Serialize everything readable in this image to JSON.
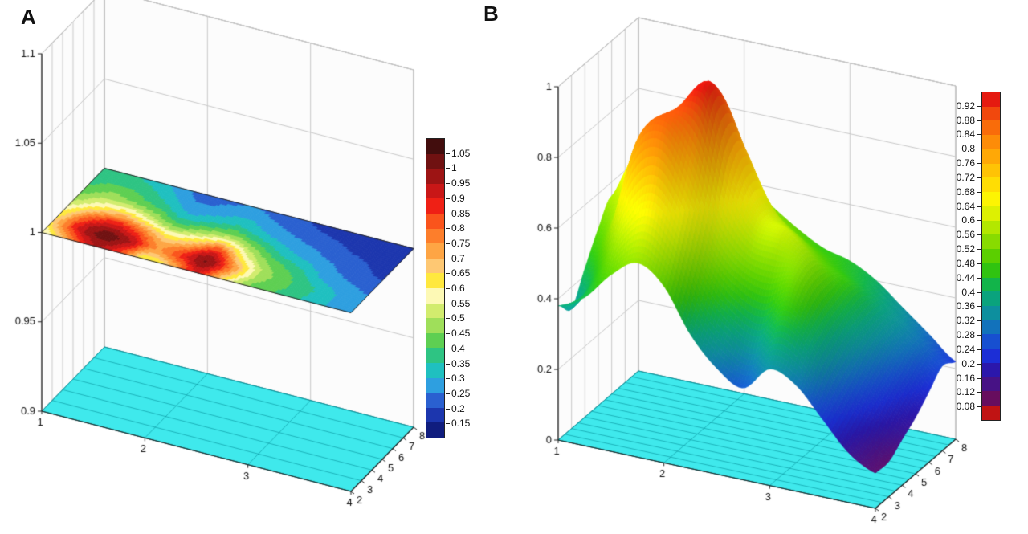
{
  "figure": {
    "background": "#ffffff"
  },
  "chart_data": [
    {
      "id": "A",
      "label": "A",
      "type": "heatmap",
      "render": "contour-slice-3d",
      "plane_z": 1.0,
      "floor_color": "#3fe9ec",
      "x": [
        1,
        1.25,
        1.5,
        1.75,
        2,
        2.25,
        2.5,
        2.75,
        3,
        3.25,
        3.5,
        3.75,
        4
      ],
      "y": [
        2,
        3,
        4,
        5,
        6,
        7,
        8
      ],
      "values": [
        [
          0.55,
          0.75,
          0.95,
          0.85,
          0.6,
          0.7,
          0.9,
          0.65,
          0.45,
          0.4,
          0.35,
          0.3,
          0.28
        ],
        [
          0.65,
          0.9,
          1.02,
          0.95,
          0.75,
          0.85,
          1.0,
          0.75,
          0.5,
          0.42,
          0.36,
          0.3,
          0.26
        ],
        [
          0.6,
          0.8,
          0.9,
          0.8,
          0.65,
          0.7,
          0.85,
          0.6,
          0.45,
          0.38,
          0.3,
          0.26,
          0.24
        ],
        [
          0.5,
          0.6,
          0.65,
          0.55,
          0.45,
          0.5,
          0.55,
          0.45,
          0.35,
          0.3,
          0.26,
          0.22,
          0.2
        ],
        [
          0.42,
          0.48,
          0.45,
          0.4,
          0.32,
          0.35,
          0.38,
          0.32,
          0.28,
          0.25,
          0.22,
          0.2,
          0.18
        ],
        [
          0.38,
          0.4,
          0.38,
          0.32,
          0.26,
          0.28,
          0.3,
          0.26,
          0.23,
          0.21,
          0.19,
          0.17,
          0.16
        ],
        [
          0.35,
          0.36,
          0.33,
          0.28,
          0.22,
          0.24,
          0.25,
          0.22,
          0.2,
          0.18,
          0.17,
          0.16,
          0.15
        ]
      ],
      "axes": {
        "x": {
          "range": [
            1,
            4
          ],
          "ticks": [
            "1",
            "2",
            "3",
            "4"
          ]
        },
        "y": {
          "range": [
            2,
            8
          ],
          "ticks": [
            "2",
            "3",
            "4",
            "5",
            "6",
            "7",
            "8"
          ]
        },
        "z": {
          "range": [
            0.9,
            1.1
          ],
          "ticks": [
            "0.9",
            "0.95",
            "1",
            "1.05",
            "1.1"
          ]
        }
      },
      "colorbar": {
        "tick_labels_top_to_bottom": [
          "1.05",
          "1",
          "0.95",
          "0.9",
          "0.85",
          "0.8",
          "0.75",
          "0.7",
          "0.65",
          "0.6",
          "0.55",
          "0.5",
          "0.45",
          "0.4",
          "0.35",
          "0.3",
          "0.25",
          "0.2",
          "0.15"
        ],
        "levels_ascending": [
          0.15,
          0.2,
          0.25,
          0.3,
          0.35,
          0.4,
          0.45,
          0.5,
          0.55,
          0.6,
          0.65,
          0.7,
          0.75,
          0.8,
          0.85,
          0.9,
          0.95,
          1.0,
          1.05
        ],
        "segment_colors_top_to_bottom": [
          "#420d0d",
          "#701111",
          "#9d1414",
          "#c91717",
          "#ef2015",
          "#fa541c",
          "#fd7e2b",
          "#fea544",
          "#fec873",
          "#ffe83e",
          "#fdf9b5",
          "#d2ec6e",
          "#9fdf5a",
          "#5ecf52",
          "#2ec483",
          "#1fc0c0",
          "#2e9fe0",
          "#2a60d0",
          "#1c36ae",
          "#101d7e"
        ]
      }
    },
    {
      "id": "B",
      "label": "B",
      "type": "heatmap",
      "render": "surface-3d",
      "floor_color": "#3fe9ec",
      "x": [
        1,
        1.25,
        1.5,
        1.75,
        2,
        2.25,
        2.5,
        2.75,
        3,
        3.25,
        3.5,
        3.75,
        4
      ],
      "y": [
        2,
        3,
        4,
        5,
        6,
        7,
        8
      ],
      "values": [
        [
          0.38,
          0.42,
          0.5,
          0.55,
          0.5,
          0.38,
          0.3,
          0.26,
          0.33,
          0.3,
          0.22,
          0.14,
          0.1
        ],
        [
          0.34,
          0.46,
          0.62,
          0.7,
          0.62,
          0.48,
          0.4,
          0.36,
          0.44,
          0.38,
          0.26,
          0.16,
          0.1
        ],
        [
          0.42,
          0.56,
          0.82,
          0.88,
          0.78,
          0.6,
          0.52,
          0.5,
          0.52,
          0.42,
          0.3,
          0.2,
          0.13
        ],
        [
          0.5,
          0.62,
          0.74,
          0.88,
          0.96,
          0.76,
          0.62,
          0.6,
          0.54,
          0.44,
          0.34,
          0.24,
          0.16
        ],
        [
          0.56,
          0.7,
          0.66,
          0.78,
          0.92,
          0.78,
          0.62,
          0.56,
          0.5,
          0.45,
          0.36,
          0.28,
          0.2
        ],
        [
          0.48,
          0.62,
          0.58,
          0.62,
          0.72,
          0.62,
          0.55,
          0.5,
          0.46,
          0.42,
          0.36,
          0.3,
          0.24
        ],
        [
          0.42,
          0.52,
          0.52,
          0.56,
          0.6,
          0.55,
          0.5,
          0.46,
          0.44,
          0.4,
          0.34,
          0.28,
          0.22
        ]
      ],
      "axes": {
        "x": {
          "range": [
            1,
            4
          ],
          "ticks": [
            "1",
            "2",
            "3",
            "4"
          ]
        },
        "y": {
          "range": [
            2,
            8
          ],
          "ticks": [
            "2",
            "3",
            "4",
            "5",
            "6",
            "7",
            "8"
          ]
        },
        "z": {
          "range": [
            0,
            1
          ],
          "ticks": [
            "0",
            "0.2",
            "0.4",
            "0.6",
            "0.8",
            "1"
          ]
        }
      },
      "colorbar": {
        "tick_labels_top_to_bottom": [
          "0.92",
          "0.88",
          "0.84",
          "0.8",
          "0.76",
          "0.72",
          "0.68",
          "0.64",
          "0.6",
          "0.56",
          "0.52",
          "0.48",
          "0.44",
          "0.4",
          "0.36",
          "0.32",
          "0.28",
          "0.24",
          "0.2",
          "0.16",
          "0.12",
          "0.08"
        ],
        "levels_ascending": [
          0.08,
          0.12,
          0.16,
          0.2,
          0.24,
          0.28,
          0.32,
          0.36,
          0.4,
          0.44,
          0.48,
          0.52,
          0.56,
          0.6,
          0.64,
          0.68,
          0.72,
          0.76,
          0.8,
          0.84,
          0.88,
          0.92
        ],
        "segment_colors_top_to_bottom": [
          "#e51a10",
          "#f1480d",
          "#f96c0a",
          "#fd8c08",
          "#ffa806",
          "#ffc305",
          "#ffdd04",
          "#fdf403",
          "#ddf002",
          "#b3e700",
          "#88db00",
          "#5bcf00",
          "#30c310",
          "#12b44a",
          "#0aa37d",
          "#0d8f9e",
          "#1272bb",
          "#174fd0",
          "#1c2ed6",
          "#2b17ab",
          "#471285",
          "#670d5e",
          "#c01313"
        ]
      }
    }
  ]
}
